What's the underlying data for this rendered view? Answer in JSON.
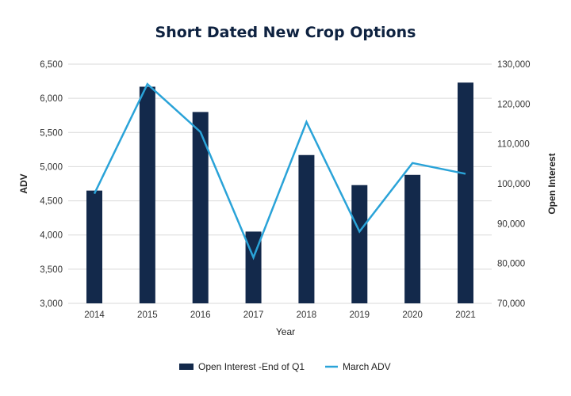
{
  "chart_data": {
    "type": "bar+line",
    "title": "Short Dated New Crop Options",
    "xlabel": "Year",
    "ylabel_left": "ADV",
    "ylabel_right": "Open Interest",
    "categories": [
      "2014",
      "2015",
      "2016",
      "2017",
      "2018",
      "2019",
      "2020",
      "2021"
    ],
    "left_axis": {
      "min": 3000,
      "max": 6500,
      "ticks": [
        3000,
        3500,
        4000,
        4500,
        5000,
        5500,
        6000,
        6500
      ],
      "tick_labels": [
        "3,000",
        "3,500",
        "4,000",
        "4,500",
        "5,000",
        "5,500",
        "6,000",
        "6,500"
      ]
    },
    "right_axis": {
      "min": 70000,
      "max": 130000,
      "ticks": [
        70000,
        80000,
        90000,
        100000,
        110000,
        120000,
        130000
      ],
      "tick_labels": [
        "70,000",
        "80,000",
        "90,000",
        "100,000",
        "110,000",
        "120,000",
        "130,000"
      ]
    },
    "grid": true,
    "legend_position": "bottom-center",
    "series": [
      {
        "name": "Open Interest -End of Q1",
        "kind": "bar",
        "axis": "left",
        "color": "#13294b",
        "values": [
          4650,
          6170,
          5800,
          4050,
          5170,
          4730,
          4880,
          6230
        ]
      },
      {
        "name": "March ADV",
        "kind": "line",
        "axis": "right",
        "color": "#2aa3d8",
        "values": [
          97500,
          125000,
          113000,
          81500,
          115500,
          88000,
          105200,
          102500
        ]
      }
    ]
  }
}
